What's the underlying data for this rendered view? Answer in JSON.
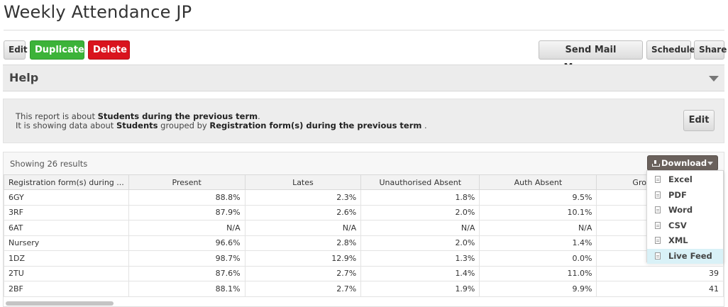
{
  "page": {
    "title": "Weekly Attendance JP"
  },
  "toolbar": {
    "edit": "Edit",
    "duplicate": "Duplicate",
    "delete": "Delete",
    "mail_merge": "Send Mail Merge...",
    "schedule": "Schedule",
    "share": "Share"
  },
  "help": {
    "title": "Help"
  },
  "description": {
    "line1_prefix": "This report is about ",
    "line1_bold": "Students during the previous term",
    "line1_suffix": ".",
    "line2_prefix": "It is showing data about ",
    "line2_bold1": "Students",
    "line2_mid": " grouped by ",
    "line2_bold2": "Registration form(s) during the previous term",
    "line2_suffix": " .",
    "edit": "Edit"
  },
  "results": {
    "count_text": "Showing 26 results",
    "download_label": "Download",
    "columns": [
      "Registration form(s) during ...",
      "Present",
      "Lates",
      "Unauthorised Absent",
      "Auth Absent",
      "Grou"
    ],
    "rows": [
      [
        "6GY",
        "88.8%",
        "2.3%",
        "1.8%",
        "9.5%",
        ""
      ],
      [
        "3RF",
        "87.9%",
        "2.6%",
        "2.0%",
        "10.1%",
        ""
      ],
      [
        "6AT",
        "N/A",
        "N/A",
        "N/A",
        "N/A",
        ""
      ],
      [
        "Nursery",
        "96.6%",
        "2.8%",
        "2.0%",
        "1.4%",
        ""
      ],
      [
        "1DZ",
        "98.7%",
        "12.9%",
        "1.3%",
        "0.0%",
        ""
      ],
      [
        "2TU",
        "87.6%",
        "2.7%",
        "1.4%",
        "11.0%",
        "39"
      ],
      [
        "2BF",
        "88.1%",
        "2.7%",
        "1.9%",
        "9.9%",
        "41"
      ]
    ]
  },
  "download_menu": {
    "items": [
      {
        "label": "Excel",
        "icon": "excel-file-icon"
      },
      {
        "label": "PDF",
        "icon": "pdf-file-icon"
      },
      {
        "label": "Word",
        "icon": "word-file-icon"
      },
      {
        "label": "CSV",
        "icon": "csv-file-icon"
      },
      {
        "label": "XML",
        "icon": "xml-file-icon"
      },
      {
        "label": "Live Feed",
        "icon": "live-feed-file-icon"
      }
    ],
    "active_item": "Live Feed"
  },
  "colors": {
    "duplicate": "#3cb339",
    "delete": "#d9141e",
    "download": "#6a615c",
    "active_menu_item": "#d9f1f7"
  }
}
